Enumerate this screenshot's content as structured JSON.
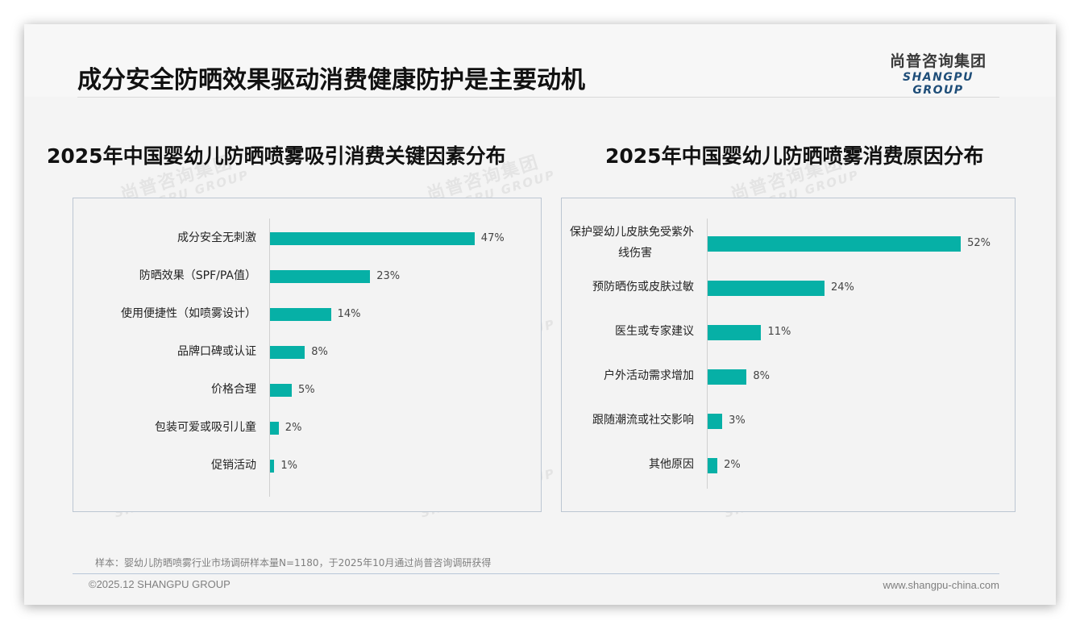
{
  "header": {
    "title": "成分安全防晒效果驱动消费健康防护是主要动机",
    "logo_cn": "尚普咨询集团",
    "logo_en": "SHANGPU GROUP"
  },
  "watermark": {
    "cn": "尚普咨询集团",
    "en": "SHANGPU GROUP"
  },
  "colors": {
    "bar": "#06b0a6",
    "panel_border": "#bcc6d2",
    "logo_en": "#1f4e79"
  },
  "chart_data": [
    {
      "type": "bar",
      "orientation": "horizontal",
      "title": "2025年中国婴幼儿防晒喷雾吸引消费关键因素分布",
      "categories": [
        "成分安全无刺激",
        "防晒效果（SPF/PA值）",
        "使用便捷性（如喷雾设计）",
        "品牌口碑或认证",
        "价格合理",
        "包装可爱或吸引儿童",
        "促销活动"
      ],
      "values": [
        47,
        23,
        14,
        8,
        5,
        2,
        1
      ],
      "value_labels": [
        "47%",
        "23%",
        "14%",
        "8%",
        "5%",
        "2%",
        "1%"
      ],
      "unit": "%",
      "xlabel": "",
      "ylabel": "",
      "grid": false,
      "legend": "none"
    },
    {
      "type": "bar",
      "orientation": "horizontal",
      "title": "2025年中国婴幼儿防晒喷雾消费原因分布",
      "categories": [
        "保护婴幼儿皮肤免受紫外线伤害",
        "预防晒伤或皮肤过敏",
        "医生或专家建议",
        "户外活动需求增加",
        "跟随潮流或社交影响",
        "其他原因"
      ],
      "category_display": [
        [
          "保护婴幼儿皮肤免受紫外",
          "线伤害"
        ],
        [
          "预防晒伤或皮肤过敏"
        ],
        [
          "医生或专家建议"
        ],
        [
          "户外活动需求增加"
        ],
        [
          "跟随潮流或社交影响"
        ],
        [
          "其他原因"
        ]
      ],
      "values": [
        52,
        24,
        11,
        8,
        3,
        2
      ],
      "value_labels": [
        "52%",
        "24%",
        "11%",
        "8%",
        "3%",
        "2%"
      ],
      "unit": "%",
      "xlabel": "",
      "ylabel": "",
      "grid": false,
      "legend": "none"
    }
  ],
  "footer": {
    "note": "样本：婴幼儿防晒喷雾行业市场调研样本量N=1180，于2025年10月通过尚普咨询调研获得",
    "copyright": "©2025.12 SHANGPU GROUP",
    "website": "www.shangpu-china.com"
  }
}
